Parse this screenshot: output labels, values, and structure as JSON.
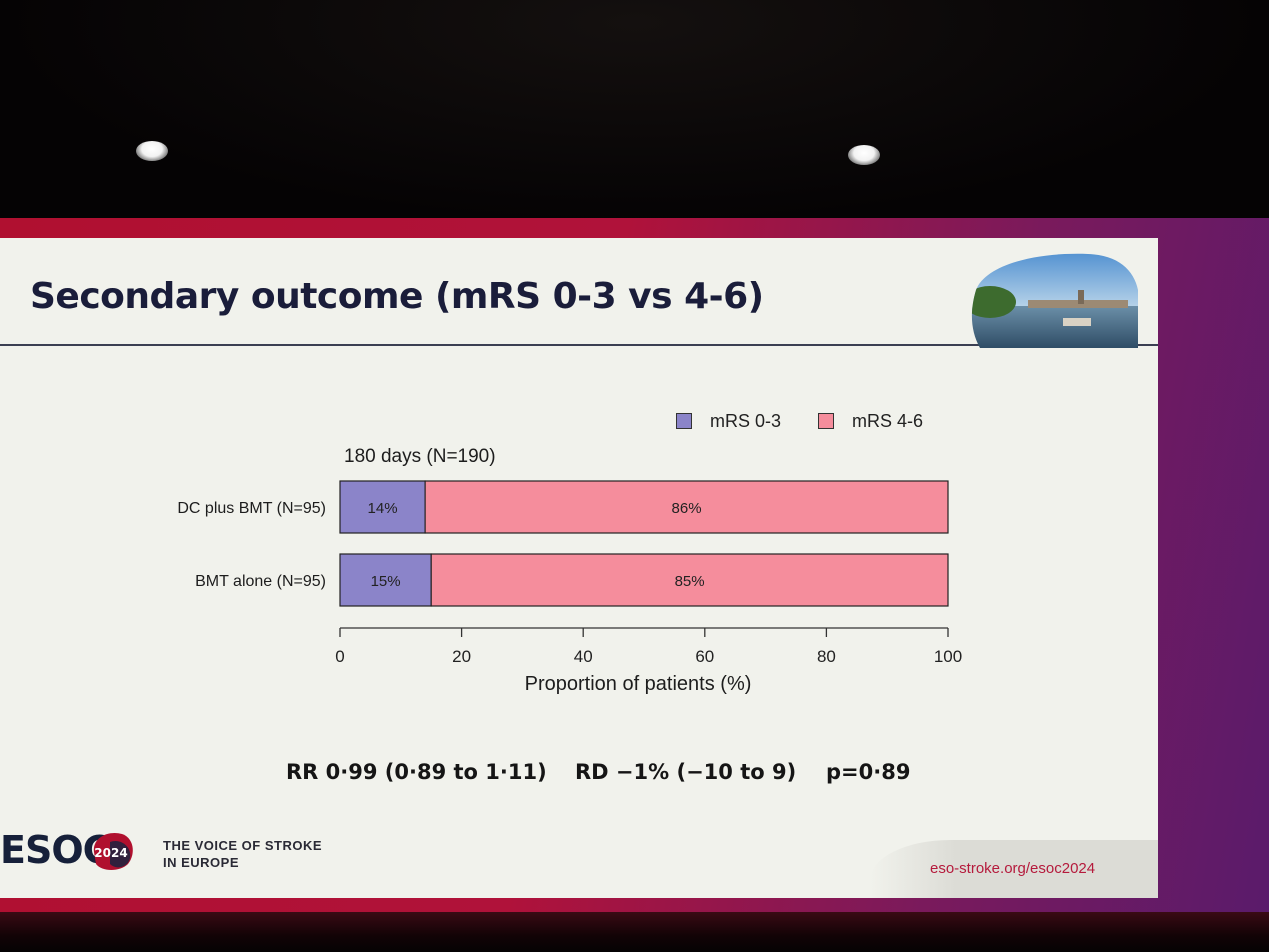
{
  "slide": {
    "title": "Secondary outcome (mRS 0-3 vs 4-6)",
    "stats": {
      "rr": "RR 0·99 (0·89 to 1·11)",
      "rd": "RD −1% (−10 to 9)",
      "p": "p=0·89"
    },
    "footer": {
      "brand": "ESOC",
      "badge": "2024",
      "tagline_line1": "THE VOICE OF STROKE",
      "tagline_line2": "IN EUROPE",
      "url": "eso-stroke.org/esoc2024"
    }
  },
  "chart_data": {
    "type": "bar",
    "orientation": "horizontal",
    "stacked": true,
    "subtitle": "180 days (N=190)",
    "categories": [
      "DC plus BMT (N=95)",
      "BMT alone (N=95)"
    ],
    "series": [
      {
        "name": "mRS 0-3",
        "color": "#8b84c9",
        "values": [
          14,
          15
        ],
        "labels": [
          "14%",
          "15%"
        ]
      },
      {
        "name": "mRS 4-6",
        "color": "#f58d9c",
        "values": [
          86,
          85
        ],
        "labels": [
          "86%",
          "85%"
        ]
      }
    ],
    "xlabel": "Proportion of patients (%)",
    "xlim": [
      0,
      100
    ],
    "xticks": [
      0,
      20,
      40,
      60,
      80,
      100
    ],
    "legend_position": "top-right",
    "grid": false
  }
}
